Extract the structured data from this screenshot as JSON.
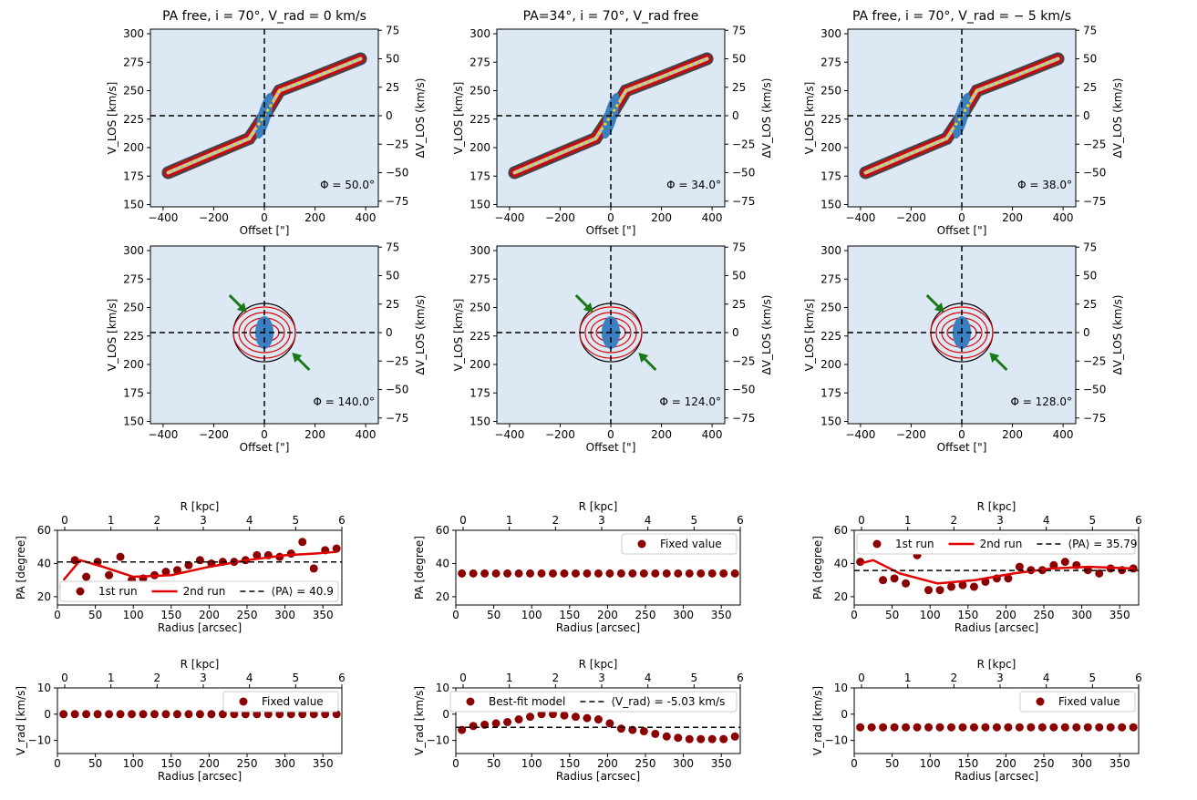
{
  "colors": {
    "model": "#e00000",
    "data_contour": "#000000",
    "point": "#8b0000",
    "rotation_curve": "#f4d21f",
    "arrow": "#1a7a1a",
    "map_bg": "#dce8f4",
    "map_core": "#3b7fc0"
  },
  "pv_columns": [
    {
      "title": "PA free, i = 70°, V_rad = 0 km/s",
      "row1_phi": "Φ = 50.0°",
      "row2_phi": "Φ = 140.0°"
    },
    {
      "title": "PA=34°, i = 70°, V_rad free",
      "row1_phi": "Φ = 34.0°",
      "row2_phi": "Φ = 124.0°"
    },
    {
      "title": "PA free, i = 70°, V_rad = − 5 km/s",
      "row1_phi": "Φ = 38.0°",
      "row2_phi": "Φ = 128.0°"
    }
  ],
  "pv_axes": {
    "xlabel": "Offset [\"]",
    "ylabel": "V_LOS [km/s]",
    "y2label": "ΔV_LOS (km/s)",
    "xticks": [
      "−400",
      "−200",
      "0",
      "200",
      "400"
    ],
    "yticks": [
      "150",
      "175",
      "200",
      "225",
      "250",
      "275",
      "300"
    ],
    "y2ticks": [
      "−75",
      "−50",
      "−25",
      "0",
      "25",
      "50",
      "75"
    ]
  },
  "profile_axes": {
    "xlabel": "Radius [arcsec]",
    "top_xlabel": "R [kpc]",
    "pa_ylabel": "PA [degree]",
    "vrad_ylabel": "V_rad [km/s]",
    "xticks": [
      "0",
      "50",
      "100",
      "150",
      "200",
      "250",
      "300",
      "350"
    ],
    "top_xticks": [
      "0",
      "1",
      "2",
      "3",
      "4",
      "5",
      "6"
    ],
    "pa_yticks": [
      "20",
      "40",
      "60"
    ],
    "vrad_yticks": [
      "−10",
      "0",
      "10"
    ]
  },
  "chart_data": [
    {
      "type": "scatter",
      "panel": "PA profile, left",
      "radius": [
        8,
        23,
        38,
        53,
        68,
        83,
        98,
        113,
        128,
        143,
        158,
        173,
        188,
        203,
        218,
        233,
        248,
        263,
        278,
        293,
        308,
        323,
        338,
        353,
        368
      ],
      "values": [
        26,
        42,
        32,
        41,
        33,
        44,
        30,
        31,
        33,
        35,
        36,
        39,
        42,
        40,
        41,
        41,
        42,
        45,
        45,
        44,
        46,
        53,
        37,
        48,
        49
      ],
      "series": [
        {
          "name": "1st run",
          "kind": "points"
        },
        {
          "name": "2nd run",
          "kind": "line",
          "radius": [
            8,
            30,
            60,
            100,
            150,
            200,
            250,
            300,
            340,
            368
          ],
          "values": [
            30,
            42,
            38,
            32,
            33,
            38,
            42,
            45,
            46,
            47
          ]
        },
        {
          "name": "⟨PA⟩ = 40.9",
          "kind": "hline",
          "value": 40.9
        }
      ],
      "ylim": [
        15,
        60
      ]
    },
    {
      "type": "scatter",
      "panel": "PA profile, middle",
      "radius": [
        8,
        23,
        38,
        53,
        68,
        83,
        98,
        113,
        128,
        143,
        158,
        173,
        188,
        203,
        218,
        233,
        248,
        263,
        278,
        293,
        308,
        323,
        338,
        353,
        368
      ],
      "values": [
        34,
        34,
        34,
        34,
        34,
        34,
        34,
        34,
        34,
        34,
        34,
        34,
        34,
        34,
        34,
        34,
        34,
        34,
        34,
        34,
        34,
        34,
        34,
        34,
        34
      ],
      "series": [
        {
          "name": "Fixed value",
          "kind": "points"
        }
      ],
      "ylim": [
        15,
        60
      ]
    },
    {
      "type": "scatter",
      "panel": "PA profile, right",
      "radius": [
        8,
        23,
        38,
        53,
        68,
        83,
        98,
        113,
        128,
        143,
        158,
        173,
        188,
        203,
        218,
        233,
        248,
        263,
        278,
        293,
        308,
        323,
        338,
        353,
        368
      ],
      "values": [
        41,
        52,
        30,
        31,
        28,
        45,
        24,
        24,
        26,
        27,
        26,
        29,
        31,
        31,
        38,
        36,
        36,
        39,
        41,
        39,
        36,
        34,
        37,
        36,
        37
      ],
      "series": [
        {
          "name": "1st run",
          "kind": "points"
        },
        {
          "name": "2nd run",
          "kind": "line",
          "radius": [
            8,
            25,
            60,
            110,
            160,
            210,
            260,
            310,
            368
          ],
          "values": [
            40,
            42,
            34,
            28,
            30,
            34,
            37,
            38,
            37
          ]
        },
        {
          "name": "⟨PA⟩ = 35.79",
          "kind": "hline",
          "value": 35.79
        }
      ],
      "ylim": [
        15,
        60
      ]
    },
    {
      "type": "scatter",
      "panel": "V_rad profile, left",
      "radius": [
        8,
        23,
        38,
        53,
        68,
        83,
        98,
        113,
        128,
        143,
        158,
        173,
        188,
        203,
        218,
        233,
        248,
        263,
        278,
        293,
        308,
        323,
        338,
        353,
        368
      ],
      "values": [
        0,
        0,
        0,
        0,
        0,
        0,
        0,
        0,
        0,
        0,
        0,
        0,
        0,
        0,
        0,
        0,
        0,
        0,
        0,
        0,
        0,
        0,
        0,
        0,
        0
      ],
      "series": [
        {
          "name": "Fixed value",
          "kind": "points"
        }
      ],
      "ylim": [
        -15,
        10
      ]
    },
    {
      "type": "scatter",
      "panel": "V_rad profile, middle",
      "radius": [
        8,
        23,
        38,
        53,
        68,
        83,
        98,
        113,
        128,
        143,
        158,
        173,
        188,
        203,
        218,
        233,
        248,
        263,
        278,
        293,
        308,
        323,
        338,
        353,
        368
      ],
      "values": [
        -6,
        -4.5,
        -4,
        -3.5,
        -3,
        -2,
        -1,
        0,
        0,
        -0.5,
        -1,
        -1.5,
        -2,
        -3.5,
        -5.5,
        -6,
        -6.5,
        -7.5,
        -8.5,
        -9,
        -9.5,
        -9.5,
        -9.5,
        -9.5,
        -8.5
      ],
      "series": [
        {
          "name": "Best-fit model",
          "kind": "points"
        },
        {
          "name": "⟨V_rad⟩ = -5.03 km/s",
          "kind": "hline",
          "value": -5.03
        }
      ],
      "ylim": [
        -15,
        10
      ]
    },
    {
      "type": "scatter",
      "panel": "V_rad profile, right",
      "radius": [
        8,
        23,
        38,
        53,
        68,
        83,
        98,
        113,
        128,
        143,
        158,
        173,
        188,
        203,
        218,
        233,
        248,
        263,
        278,
        293,
        308,
        323,
        338,
        353,
        368
      ],
      "values": [
        -5,
        -5,
        -5,
        -5,
        -5,
        -5,
        -5,
        -5,
        -5,
        -5,
        -5,
        -5,
        -5,
        -5,
        -5,
        -5,
        -5,
        -5,
        -5,
        -5,
        -5,
        -5,
        -5,
        -5,
        -5
      ],
      "series": [
        {
          "name": "Fixed value",
          "kind": "points"
        }
      ],
      "ylim": [
        -15,
        10
      ]
    }
  ]
}
